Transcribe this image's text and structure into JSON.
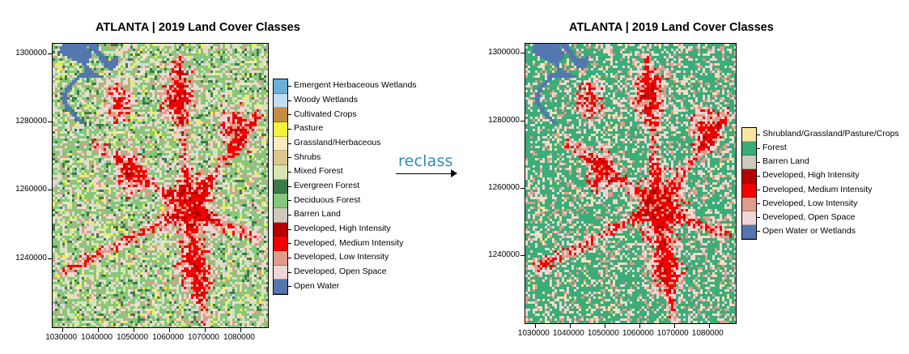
{
  "chart_data": [
    {
      "type": "heatmap",
      "title": "ATLANTA | 2019 Land Cover Classes",
      "xlabel": "",
      "ylabel": "",
      "xlim": [
        1027000,
        1087500
      ],
      "ylim": [
        1220000,
        1303000
      ],
      "x_ticks": [
        "1030000",
        "1040000",
        "1050000",
        "1060000",
        "1070000",
        "1080000"
      ],
      "y_ticks": [
        "1300000",
        "1280000",
        "1260000",
        "1240000"
      ],
      "legend": {
        "position": "right",
        "entries": [
          {
            "label": "Emergent Herbaceous Wetlands",
            "color": "#6cafd6"
          },
          {
            "label": "Woody Wetlands",
            "color": "#c3def2"
          },
          {
            "label": "Cultivated Crops",
            "color": "#c48d44"
          },
          {
            "label": "Pasture",
            "color": "#f2f23a"
          },
          {
            "label": "Grassland/Herbaceous",
            "color": "#fbeabf"
          },
          {
            "label": "Shrubs",
            "color": "#dcc68c"
          },
          {
            "label": "Mixed Forest",
            "color": "#d6e6b2"
          },
          {
            "label": "Evergreen Forest",
            "color": "#3b7b4c"
          },
          {
            "label": "Deciduous Forest",
            "color": "#86c77a"
          },
          {
            "label": "Barren Land",
            "color": "#cec9bc"
          },
          {
            "label": "Developed, High Intensity",
            "color": "#b50000"
          },
          {
            "label": "Developed, Medium Intensity",
            "color": "#f50000"
          },
          {
            "label": "Developed, Low Intensity",
            "color": "#e09c8a"
          },
          {
            "label": "Developed, Open Space",
            "color": "#efd6d6"
          },
          {
            "label": "Open Water",
            "color": "#5477b0"
          }
        ]
      }
    },
    {
      "type": "heatmap",
      "title": "ATLANTA | 2019 Land Cover Classes",
      "xlabel": "",
      "ylabel": "",
      "xlim": [
        1027000,
        1087500
      ],
      "ylim": [
        1220000,
        1303000
      ],
      "x_ticks": [
        "1030000",
        "1040000",
        "1050000",
        "1060000",
        "1070000",
        "1080000"
      ],
      "y_ticks": [
        "1300000",
        "1280000",
        "1260000",
        "1240000"
      ],
      "legend": {
        "position": "right",
        "entries": [
          {
            "label": "Shrubland/Grassland/Pasture/Crops",
            "color": "#f8e7a2"
          },
          {
            "label": "Forest",
            "color": "#3aad79"
          },
          {
            "label": "Barren Land",
            "color": "#cec9bc"
          },
          {
            "label": "Developed, High Intensity",
            "color": "#b50000"
          },
          {
            "label": "Developed, Medium Intensity",
            "color": "#f50000"
          },
          {
            "label": "Developed, Low Intensity",
            "color": "#e09c8a"
          },
          {
            "label": "Developed, Open Space",
            "color": "#efd6d6"
          },
          {
            "label": "Open Water or Wetlands",
            "color": "#5477b0"
          }
        ]
      }
    }
  ],
  "arrow_label": "reclass"
}
